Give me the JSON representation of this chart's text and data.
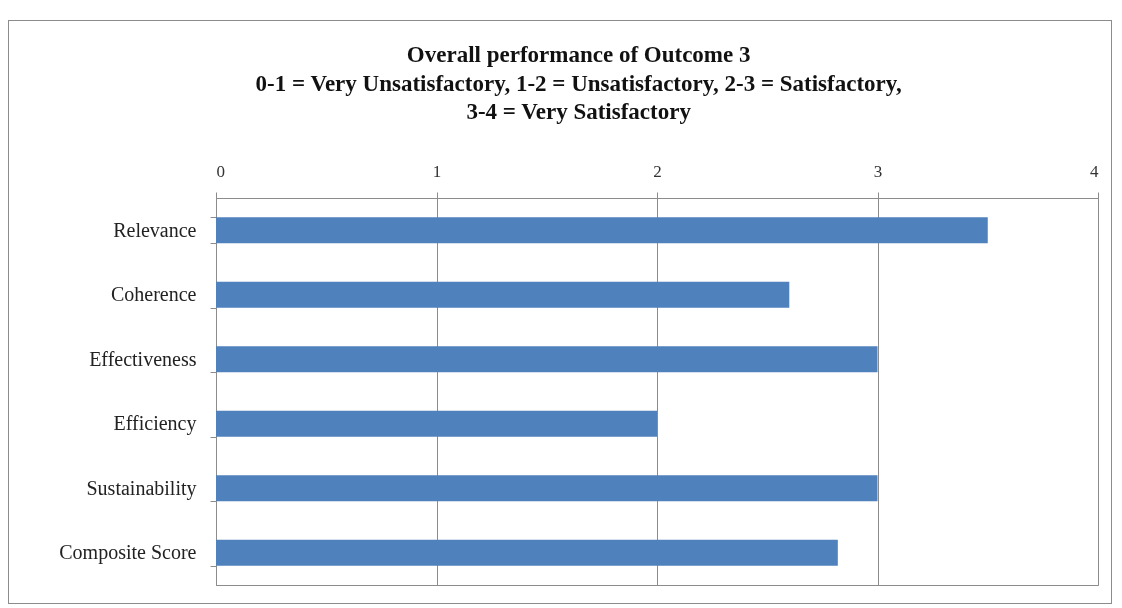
{
  "chart_data": {
    "type": "bar",
    "orientation": "horizontal",
    "title": "Overall performance of Outcome 3",
    "subtitle": "0-1 = Very Unsatisfactory, 1-2 = Unsatisfactory, 2-3 = Satisfactory, 3-4 = Very Satisfactory",
    "categories": [
      "Relevance",
      "Coherence",
      "Effectiveness",
      "Efficiency",
      "Sustainability",
      "Composite Score"
    ],
    "values": [
      3.5,
      2.6,
      3,
      2,
      3,
      2.82
    ],
    "color": "#4f81bd",
    "xlim": [
      0,
      4
    ],
    "xticks": [
      0,
      1,
      2,
      3,
      4
    ],
    "grid": "x"
  }
}
